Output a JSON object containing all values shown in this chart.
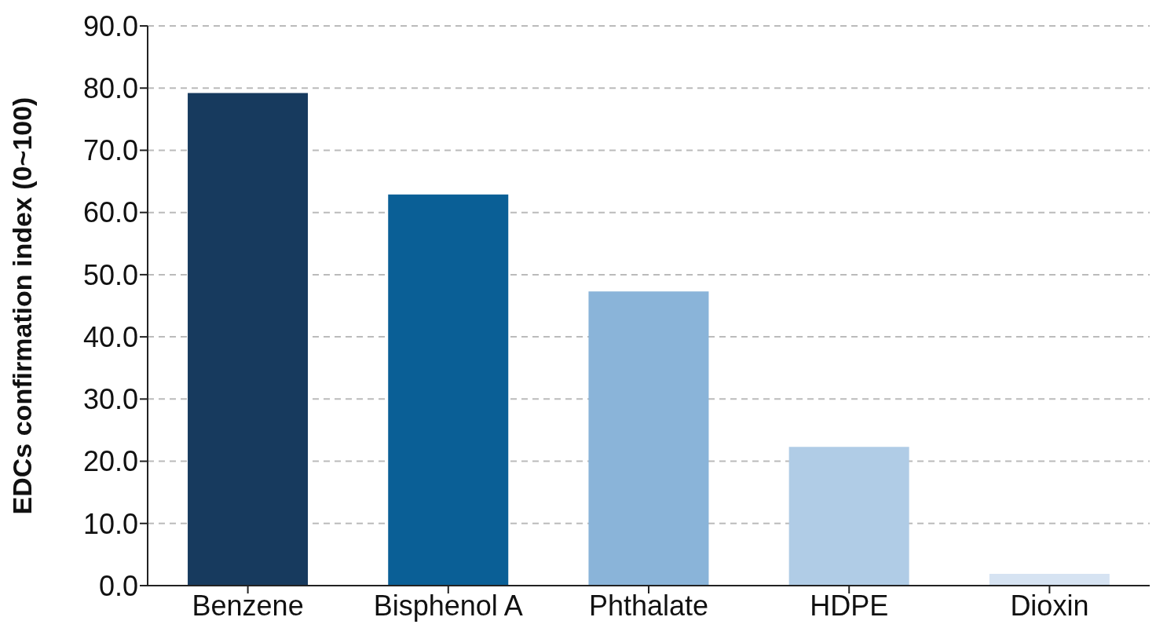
{
  "chart_data": {
    "type": "bar",
    "ylabel": "EDCs confirmation index (0~100)",
    "categories": [
      "Benzene",
      "Bisphenol A",
      "Phthalate",
      "HDPE",
      "Dioxin"
    ],
    "values": [
      79.2,
      62.9,
      47.3,
      22.3,
      1.9
    ],
    "colors": [
      "#173a5e",
      "#0a5f96",
      "#8ab4d9",
      "#b0cce6",
      "#d6e3f2"
    ],
    "ylim": [
      0,
      90
    ],
    "yticks": [
      {
        "value": 0,
        "label": "0.0"
      },
      {
        "value": 10,
        "label": "10.0"
      },
      {
        "value": 20,
        "label": "20.0"
      },
      {
        "value": 30,
        "label": "30.0"
      },
      {
        "value": 40,
        "label": "40.0"
      },
      {
        "value": 50,
        "label": "50.0"
      },
      {
        "value": 60,
        "label": "60.0"
      },
      {
        "value": 70,
        "label": "70.0"
      },
      {
        "value": 80,
        "label": "80.0"
      },
      {
        "value": 90,
        "label": "90.0"
      }
    ],
    "grid": "y"
  }
}
